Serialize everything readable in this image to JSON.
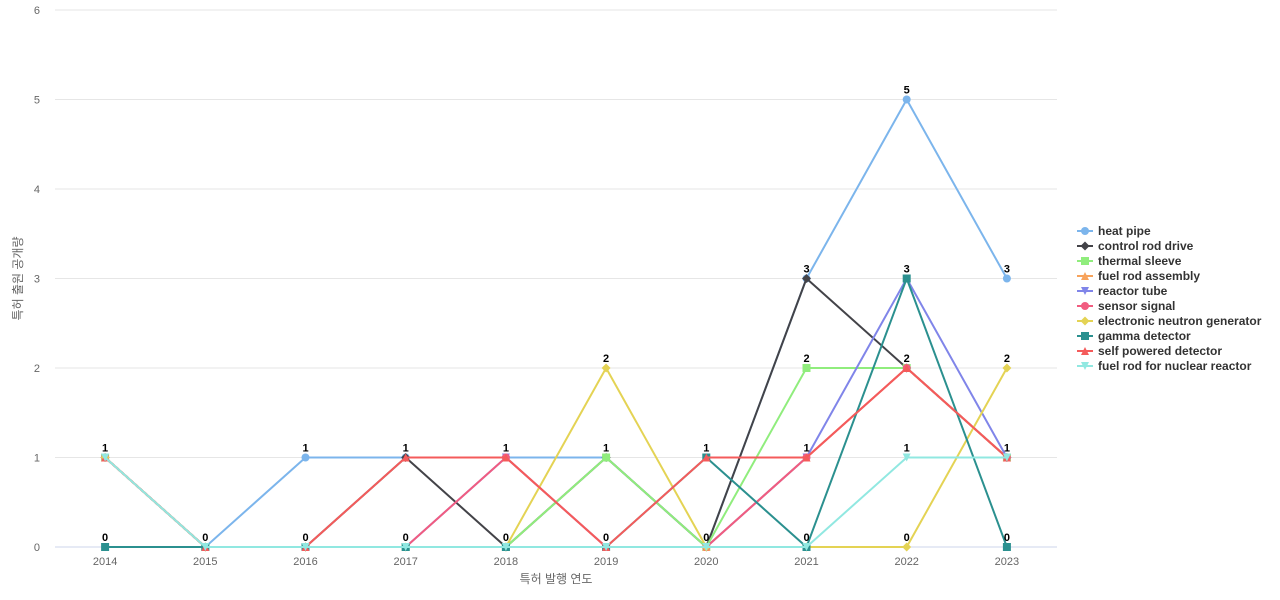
{
  "chart_data": {
    "type": "line",
    "title": "",
    "xlabel": "특허 발행 연도",
    "ylabel": "특허 출원 공개량",
    "ylim": [
      0,
      6
    ],
    "yticks": [
      0,
      1,
      2,
      3,
      4,
      5,
      6
    ],
    "grid": true,
    "legend_position": "right",
    "categories": [
      "2014",
      "2015",
      "2016",
      "2017",
      "2018",
      "2019",
      "2020",
      "2021",
      "2022",
      "2023"
    ],
    "series": [
      {
        "name": "heat pipe",
        "color": "#7cb5ec",
        "marker": "circle",
        "values": [
          1,
          0,
          1,
          1,
          1,
          1,
          0,
          3,
          5,
          3
        ]
      },
      {
        "name": "control rod drive",
        "color": "#434348",
        "marker": "diamond",
        "values": [
          1,
          0,
          0,
          1,
          0,
          1,
          0,
          3,
          2,
          1
        ]
      },
      {
        "name": "thermal sleeve",
        "color": "#90ed7d",
        "marker": "square",
        "values": [
          1,
          0,
          0,
          0,
          0,
          1,
          0,
          2,
          2,
          1
        ]
      },
      {
        "name": "fuel rod assembly",
        "color": "#f7a35c",
        "marker": "triangle",
        "values": [
          1,
          0,
          0,
          0,
          0,
          0,
          0,
          1,
          2,
          1
        ]
      },
      {
        "name": "reactor tube",
        "color": "#8085e9",
        "marker": "triangle-down",
        "values": [
          1,
          0,
          0,
          0,
          1,
          0,
          0,
          1,
          3,
          1
        ]
      },
      {
        "name": "sensor signal",
        "color": "#f15c80",
        "marker": "circle",
        "values": [
          1,
          0,
          0,
          0,
          1,
          0,
          0,
          1,
          2,
          1
        ]
      },
      {
        "name": "electronic neutron generator",
        "color": "#e4d354",
        "marker": "diamond",
        "values": [
          1,
          0,
          0,
          0,
          0,
          2,
          0,
          0,
          0,
          2
        ]
      },
      {
        "name": "gamma detector",
        "color": "#2b908f",
        "marker": "square",
        "values": [
          0,
          0,
          0,
          0,
          0,
          0,
          1,
          0,
          3,
          0
        ]
      },
      {
        "name": "self powered detector",
        "color": "#f45b5b",
        "marker": "triangle",
        "values": [
          1,
          0,
          0,
          1,
          1,
          0,
          1,
          1,
          2,
          1
        ]
      },
      {
        "name": "fuel rod for nuclear reactor",
        "color": "#91e8e1",
        "marker": "triangle-down",
        "values": [
          1,
          0,
          0,
          0,
          0,
          0,
          0,
          0,
          1,
          1
        ]
      }
    ],
    "data_labels": [
      {
        "category": "2014",
        "value": 1,
        "text": "1"
      },
      {
        "category": "2014",
        "value": 0,
        "text": "0"
      },
      {
        "category": "2015",
        "value": 0,
        "text": "0"
      },
      {
        "category": "2016",
        "value": 1,
        "text": "1"
      },
      {
        "category": "2016",
        "value": 0,
        "text": "0"
      },
      {
        "category": "2017",
        "value": 1,
        "text": "1"
      },
      {
        "category": "2017",
        "value": 0,
        "text": "0"
      },
      {
        "category": "2018",
        "value": 1,
        "text": "1"
      },
      {
        "category": "2018",
        "value": 0,
        "text": "0"
      },
      {
        "category": "2019",
        "value": 2,
        "text": "2"
      },
      {
        "category": "2019",
        "value": 1,
        "text": "1"
      },
      {
        "category": "2019",
        "value": 0,
        "text": "0"
      },
      {
        "category": "2020",
        "value": 1,
        "text": "1"
      },
      {
        "category": "2020",
        "value": 0,
        "text": "0"
      },
      {
        "category": "2021",
        "value": 3,
        "text": "3"
      },
      {
        "category": "2021",
        "value": 2,
        "text": "2"
      },
      {
        "category": "2021",
        "value": 1,
        "text": "1"
      },
      {
        "category": "2021",
        "value": 0,
        "text": "0"
      },
      {
        "category": "2022",
        "value": 5,
        "text": "5"
      },
      {
        "category": "2022",
        "value": 3,
        "text": "3"
      },
      {
        "category": "2022",
        "value": 2,
        "text": "2"
      },
      {
        "category": "2022",
        "value": 1,
        "text": "1"
      },
      {
        "category": "2022",
        "value": 0,
        "text": "0"
      },
      {
        "category": "2023",
        "value": 3,
        "text": "3"
      },
      {
        "category": "2023",
        "value": 2,
        "text": "2"
      },
      {
        "category": "2023",
        "value": 1,
        "text": "1"
      },
      {
        "category": "2023",
        "value": 0,
        "text": "0"
      }
    ]
  }
}
